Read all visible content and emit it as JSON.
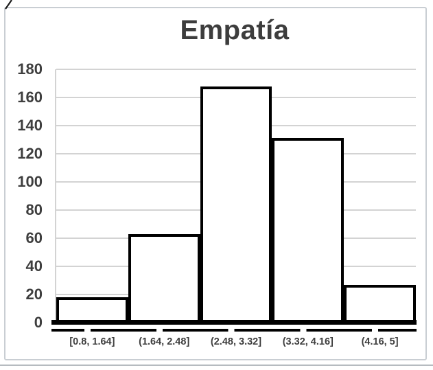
{
  "chart_data": {
    "type": "bar",
    "subtype": "histogram",
    "title": "Empatía",
    "categories": [
      "[0.8, 1.64]",
      "(1.64, 2.48]",
      "(2.48, 3.32]",
      "(3.32, 4.16]",
      "(4.16, 5]"
    ],
    "values": [
      18,
      63,
      168,
      131,
      27
    ],
    "xlabel": "",
    "ylabel": "",
    "ylim": [
      0,
      180
    ],
    "yticks": [
      0,
      20,
      40,
      60,
      80,
      100,
      120,
      140,
      160,
      180
    ],
    "grid": true,
    "legend": false,
    "bar_fill": "#ffffff",
    "bar_border_color": "#000000",
    "gap_width_percent": 0
  },
  "colors": {
    "background": "#ffffff",
    "text": "#3e3e3e",
    "title_text": "#3d3d3d",
    "gridline": "#d3d3d3",
    "axis_line": "#000000",
    "container_border": "#c9ced3",
    "bottom_separator": "#b6bbc0"
  }
}
